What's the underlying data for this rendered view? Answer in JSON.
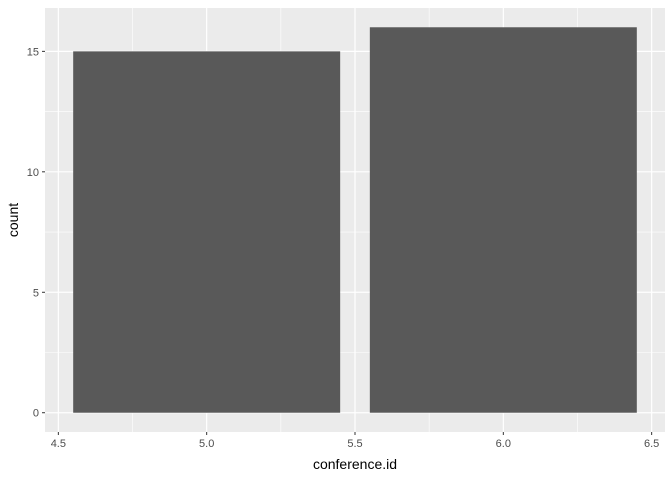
{
  "chart_data": {
    "type": "bar",
    "xlabel": "conference.id",
    "ylabel": "count",
    "xlim": [
      4.5,
      6.5
    ],
    "ylim": [
      0,
      16
    ],
    "grid": true,
    "x_ticks": [
      "4.5",
      "5.0",
      "5.5",
      "6.0",
      "6.5"
    ],
    "y_ticks": [
      "0",
      "5",
      "10",
      "15"
    ],
    "bars": [
      {
        "x": 5.0,
        "width": 0.9,
        "value": 15
      },
      {
        "x": 6.0,
        "width": 0.9,
        "value": 16
      }
    ]
  },
  "colors": {
    "panel_background": "#ebebeb",
    "grid_major": "#ffffff",
    "bar_fill": "#595959",
    "tick_mark": "#333333"
  }
}
